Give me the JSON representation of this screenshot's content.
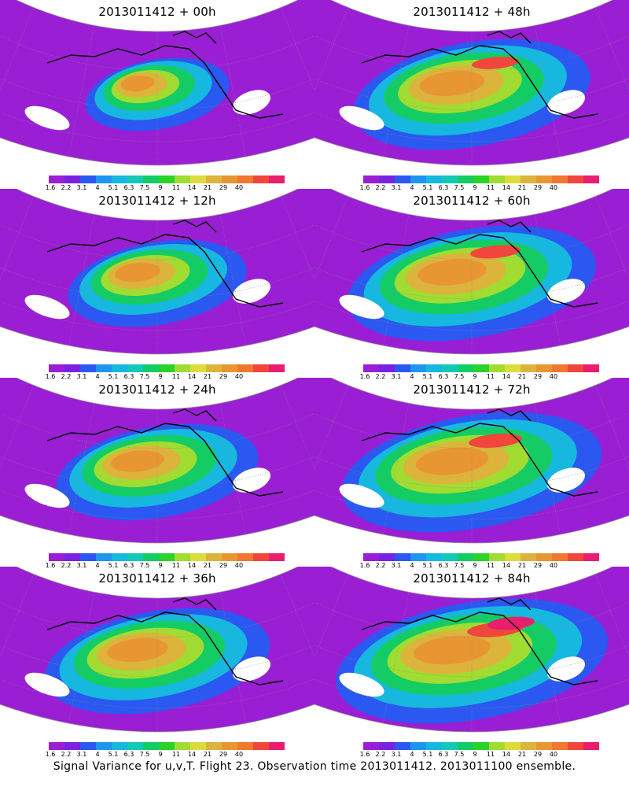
{
  "panels": [
    {
      "title": "2013011412 + 00h",
      "intensity": 0.35
    },
    {
      "title": "2013011412 + 48h",
      "intensity": 0.75
    },
    {
      "title": "2013011412 + 12h",
      "intensity": 0.5
    },
    {
      "title": "2013011412 + 60h",
      "intensity": 0.8
    },
    {
      "title": "2013011412 + 24h",
      "intensity": 0.6
    },
    {
      "title": "2013011412 + 72h",
      "intensity": 0.85
    },
    {
      "title": "2013011412 + 36h",
      "intensity": 0.7
    },
    {
      "title": "2013011412 + 84h",
      "intensity": 0.9
    }
  ],
  "colorbar": {
    "colors": [
      "#9a1fd4",
      "#7a22e0",
      "#2a58f0",
      "#1e96ee",
      "#16b8e0",
      "#14c8b8",
      "#14cc64",
      "#2ad22a",
      "#a0dc32",
      "#dcdc3c",
      "#dcb43c",
      "#e89632",
      "#f07830",
      "#f0463c",
      "#e81e6e"
    ],
    "ticks": [
      "1.6",
      "2.2",
      "3.1",
      "4",
      "5.1",
      "6.3",
      "7.5",
      "9",
      "11",
      "14",
      "21",
      "29",
      "40"
    ]
  },
  "footer": "Signal Variance for u,v,T. Flight 23. Observation time 2013011412. 2013011100 ensemble."
}
